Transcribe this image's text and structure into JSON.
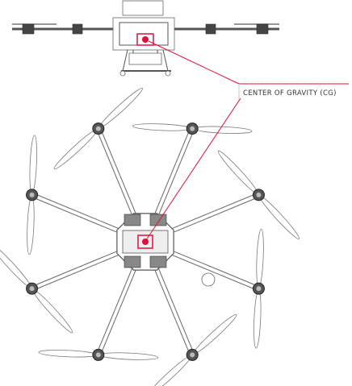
{
  "label": "CENTER OF GRAVITY (CG)"
}
